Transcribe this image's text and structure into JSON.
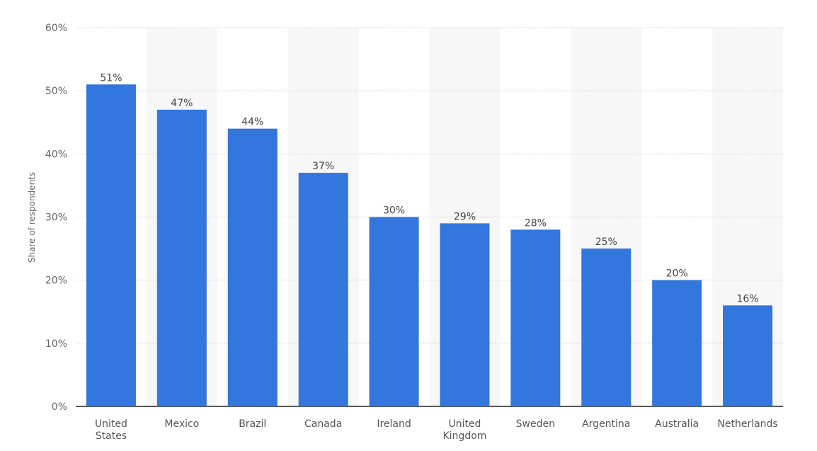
{
  "chart_data": {
    "type": "bar",
    "title": "",
    "xlabel": "",
    "ylabel": "Share of respondents",
    "ylim": [
      0,
      60
    ],
    "yticks": [
      "0%",
      "10%",
      "20%",
      "30%",
      "40%",
      "50%",
      "60%"
    ],
    "ytick_values": [
      0,
      10,
      20,
      30,
      40,
      50,
      60
    ],
    "grid": true,
    "categories": [
      [
        "United",
        "States"
      ],
      [
        "Mexico"
      ],
      [
        "Brazil"
      ],
      [
        "Canada"
      ],
      [
        "Ireland"
      ],
      [
        "United",
        "Kingdom"
      ],
      [
        "Sweden"
      ],
      [
        "Argentina"
      ],
      [
        "Australia"
      ],
      [
        "Netherlands"
      ]
    ],
    "values": [
      51,
      47,
      44,
      37,
      30,
      29,
      28,
      25,
      20,
      16
    ],
    "value_labels": [
      "51%",
      "47%",
      "44%",
      "37%",
      "30%",
      "29%",
      "28%",
      "25%",
      "20%",
      "16%"
    ],
    "colors": {
      "bar": "#3276de",
      "band": "#f7f7f7",
      "text": "#555555",
      "grid": "#cccccc",
      "axis": "#222222"
    }
  }
}
